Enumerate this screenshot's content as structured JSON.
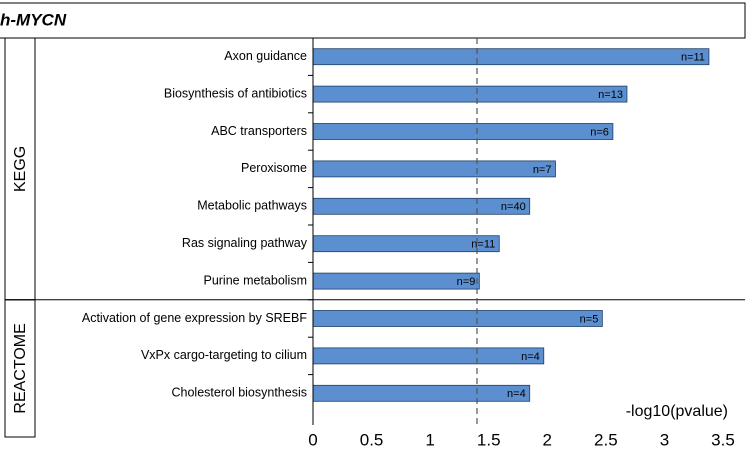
{
  "chart_data": {
    "type": "bar",
    "title": "h-MYCN",
    "xlabel": "-log10(pvalue)",
    "groups": [
      {
        "name": "KEGG",
        "categories": [
          "Axon guidance",
          "Biosynthesis of antibiotics",
          "ABC transporters",
          "Peroxisome",
          "Metabolic pathways",
          "Ras signaling pathway",
          "Purine metabolism"
        ],
        "values": [
          3.38,
          2.68,
          2.56,
          2.07,
          1.85,
          1.59,
          1.42
        ],
        "counts": [
          "n=11",
          "n=13",
          "n=6",
          "n=7",
          "n=40",
          "n=11",
          "n=9"
        ]
      },
      {
        "name": "REACTOME",
        "categories": [
          "Activation of gene expression by SREBF",
          "VxPx cargo-targeting to cilium",
          "Cholesterol biosynthesis"
        ],
        "values": [
          2.47,
          1.97,
          1.85
        ],
        "counts": [
          "n=5",
          "n=4",
          "n=4"
        ]
      }
    ],
    "color": "#5b8fcf",
    "threshold": 1.4,
    "xlim": [
      0,
      3.5
    ],
    "xticks": [
      0,
      0.5,
      1,
      1.5,
      2,
      2.5,
      3,
      3.5
    ]
  }
}
